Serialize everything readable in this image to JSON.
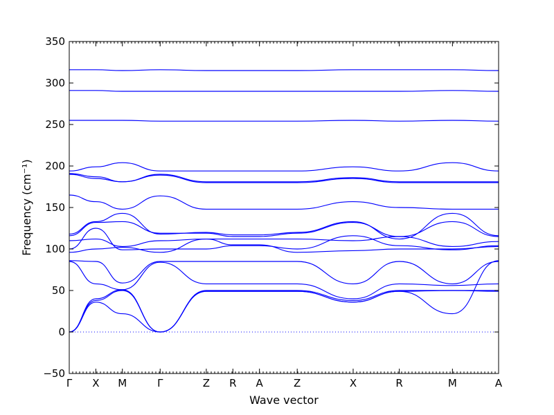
{
  "chart_data": {
    "type": "line",
    "title": "",
    "xlabel": "Wave vector",
    "ylabel": "Frequency (cm⁻¹)",
    "ylim": [
      -50,
      350
    ],
    "yticks": [
      -50,
      0,
      50,
      100,
      150,
      200,
      250,
      300,
      350
    ],
    "grid": false,
    "line_color": "#0000ff",
    "high_symmetry_points": [
      {
        "label": "Γ",
        "x": 0.0
      },
      {
        "label": "X",
        "x": 0.38
      },
      {
        "label": "M",
        "x": 0.76
      },
      {
        "label": "Γ",
        "x": 1.3
      },
      {
        "label": "Z",
        "x": 1.96
      },
      {
        "label": "R",
        "x": 2.34
      },
      {
        "label": "A",
        "x": 2.72
      },
      {
        "label": "Z",
        "x": 3.26
      },
      {
        "label": "X",
        "x": 4.06
      },
      {
        "label": "R",
        "x": 4.72
      },
      {
        "label": "M",
        "x": 5.48
      },
      {
        "label": "A",
        "x": 6.14
      }
    ],
    "xlim": [
      0,
      6.14
    ],
    "zero_line": 0,
    "series": [
      {
        "x": [
          0,
          0.38,
          0.76,
          1.3,
          1.96,
          2.34,
          2.72,
          3.26,
          4.06,
          4.72,
          5.48,
          6.14
        ],
        "values": [
          316,
          316,
          315,
          316,
          315,
          315,
          315,
          315,
          316,
          316,
          316,
          315
        ]
      },
      {
        "x": [
          0,
          0.38,
          0.76,
          1.3,
          1.96,
          2.34,
          2.72,
          3.26,
          4.06,
          4.72,
          5.48,
          6.14
        ],
        "values": [
          291,
          291,
          290,
          290,
          290,
          290,
          290,
          290,
          290,
          290,
          291,
          290
        ]
      },
      {
        "x": [
          0,
          0.38,
          0.76,
          1.3,
          1.96,
          2.34,
          2.72,
          3.26,
          4.06,
          4.72,
          5.48,
          6.14
        ],
        "values": [
          255,
          255,
          255,
          254,
          254,
          254,
          254,
          254,
          255,
          254,
          255,
          254
        ]
      },
      {
        "x": [
          0,
          0.38,
          0.76,
          1.3,
          1.96,
          2.34,
          2.72,
          3.26,
          4.06,
          4.72,
          5.48,
          6.14
        ],
        "values": [
          194,
          199,
          204,
          194,
          194,
          194,
          194,
          194,
          199,
          194,
          204,
          194
        ]
      },
      {
        "x": [
          0,
          0.38,
          0.76,
          1.3,
          1.96,
          2.34,
          2.72,
          3.26,
          4.06,
          4.72,
          5.48,
          6.14
        ],
        "values": [
          191,
          187,
          181,
          190,
          181,
          181,
          181,
          181,
          186,
          181,
          181,
          181
        ]
      },
      {
        "x": [
          0,
          0.38,
          0.76,
          1.3,
          1.96,
          2.34,
          2.72,
          3.26,
          4.06,
          4.72,
          5.48,
          6.14
        ],
        "values": [
          190,
          185,
          181,
          189,
          180,
          180,
          180,
          180,
          185,
          180,
          180,
          180
        ]
      },
      {
        "x": [
          0,
          0.38,
          0.76,
          1.3,
          1.96,
          2.34,
          2.72,
          3.26,
          4.06,
          4.72,
          5.48,
          6.14
        ],
        "values": [
          165,
          157,
          148,
          164,
          148,
          148,
          148,
          148,
          157,
          150,
          148,
          148
        ]
      },
      {
        "x": [
          0,
          0.38,
          0.76,
          1.3,
          1.96,
          2.34,
          2.72,
          3.26,
          4.06,
          4.72,
          5.48,
          6.14
        ],
        "values": [
          118,
          133,
          143,
          118,
          120,
          117,
          117,
          120,
          133,
          112,
          143,
          116
        ]
      },
      {
        "x": [
          0,
          0.38,
          0.76,
          1.3,
          1.96,
          2.34,
          2.72,
          3.26,
          4.06,
          4.72,
          5.48,
          6.14
        ],
        "values": [
          116,
          132,
          133,
          119,
          119,
          115,
          115,
          119,
          132,
          115,
          133,
          115
        ]
      },
      {
        "x": [
          0,
          0.38,
          0.76,
          1.3,
          1.96,
          2.34,
          2.72,
          3.26,
          4.06,
          4.72,
          5.48,
          6.14
        ],
        "values": [
          110,
          112,
          103,
          110,
          112,
          112,
          112,
          112,
          110,
          115,
          103,
          109
        ]
      },
      {
        "x": [
          0,
          0.38,
          0.76,
          1.3,
          1.96,
          2.34,
          2.72,
          3.26,
          4.06,
          4.72,
          5.48,
          6.14
        ],
        "values": [
          100,
          125,
          99,
          100,
          100,
          104,
          104,
          100,
          116,
          104,
          99,
          104
        ]
      },
      {
        "x": [
          0,
          0.38,
          0.76,
          1.3,
          1.96,
          2.34,
          2.72,
          3.26,
          4.06,
          4.72,
          5.48,
          6.14
        ],
        "values": [
          96,
          100,
          102,
          96,
          112,
          105,
          105,
          96,
          98,
          100,
          100,
          103
        ]
      },
      {
        "x": [
          0,
          0.38,
          0.76,
          1.3,
          1.96,
          2.34,
          2.72,
          3.26,
          4.06,
          4.72,
          5.48,
          6.14
        ],
        "values": [
          86,
          85,
          59,
          85,
          85,
          85,
          85,
          85,
          58,
          85,
          58,
          85
        ]
      },
      {
        "x": [
          0,
          0.38,
          0.76,
          1.3,
          1.96,
          2.34,
          2.72,
          3.26,
          4.06,
          4.72,
          5.48,
          6.14
        ],
        "values": [
          85,
          58,
          51,
          84,
          58,
          58,
          58,
          58,
          40,
          58,
          56,
          58
        ]
      },
      {
        "x": [
          0,
          0.38,
          0.76,
          1.3,
          1.96,
          2.34,
          2.72,
          3.26,
          4.06,
          4.72,
          5.48,
          6.14
        ],
        "values": [
          0,
          40,
          51,
          0,
          50,
          50,
          50,
          50,
          38,
          50,
          50,
          50
        ]
      },
      {
        "x": [
          0,
          0.38,
          0.76,
          1.3,
          1.96,
          2.34,
          2.72,
          3.26,
          4.06,
          4.72,
          5.48,
          6.14
        ],
        "values": [
          0,
          38,
          50,
          0,
          49,
          49,
          49,
          49,
          36,
          49,
          50,
          49
        ]
      },
      {
        "x": [
          0,
          0.38,
          0.76,
          1.3,
          1.96,
          2.34,
          2.72,
          3.26,
          4.06,
          4.72,
          5.48,
          6.14
        ],
        "values": [
          0,
          36,
          22,
          0,
          49,
          49,
          49,
          49,
          36,
          49,
          22,
          86
        ]
      }
    ]
  }
}
